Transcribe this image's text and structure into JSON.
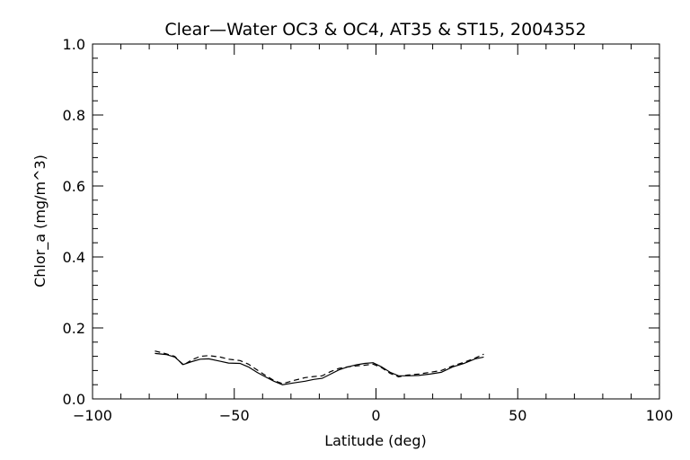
{
  "chart_data": {
    "type": "line",
    "title": "Clear—Water OC3 & OC4, AT35 & ST15, 2004352",
    "xlabel": "Latitude (deg)",
    "ylabel": "Chlor_a (mg/m^3)",
    "xlim": [
      -100,
      100
    ],
    "ylim": [
      0.0,
      1.0
    ],
    "xticks": [
      -100,
      -50,
      0,
      50,
      100
    ],
    "xtick_labels": [
      "−100",
      "−50",
      "0",
      "50",
      "100"
    ],
    "yticks": [
      0.0,
      0.2,
      0.4,
      0.6,
      0.8,
      1.0
    ],
    "ytick_labels": [
      "0.0",
      "0.2",
      "0.4",
      "0.6",
      "0.8",
      "1.0"
    ],
    "grid": false,
    "series": [
      {
        "style": "solid",
        "x": [
          -78,
          -74,
          -71,
          -68,
          -65,
          -62,
          -59,
          -55,
          -52,
          -48,
          -45,
          -42,
          -39,
          -36,
          -33,
          -29,
          -25,
          -22,
          -19,
          -16,
          -13,
          -10,
          -7,
          -4,
          -1,
          2,
          5,
          8,
          11,
          15,
          19,
          23,
          27,
          31,
          35,
          38
        ],
        "y": [
          0.128,
          0.125,
          0.118,
          0.097,
          0.105,
          0.112,
          0.113,
          0.106,
          0.101,
          0.1,
          0.09,
          0.075,
          0.062,
          0.05,
          0.04,
          0.045,
          0.05,
          0.055,
          0.058,
          0.07,
          0.082,
          0.09,
          0.096,
          0.1,
          0.102,
          0.09,
          0.075,
          0.065,
          0.065,
          0.066,
          0.07,
          0.075,
          0.09,
          0.1,
          0.113,
          0.118
        ]
      },
      {
        "style": "dashed",
        "x": [
          -78,
          -74,
          -71,
          -68,
          -65,
          -62,
          -59,
          -55,
          -52,
          -48,
          -45,
          -42,
          -39,
          -36,
          -33,
          -29,
          -25,
          -22,
          -19,
          -16,
          -13,
          -10,
          -7,
          -4,
          -1,
          2,
          5,
          8,
          11,
          15,
          19,
          23,
          27,
          31,
          35,
          38
        ],
        "y": [
          0.135,
          0.127,
          0.12,
          0.095,
          0.11,
          0.12,
          0.122,
          0.118,
          0.112,
          0.108,
          0.098,
          0.082,
          0.066,
          0.052,
          0.043,
          0.052,
          0.06,
          0.063,
          0.065,
          0.077,
          0.086,
          0.09,
          0.093,
          0.095,
          0.098,
          0.088,
          0.072,
          0.062,
          0.067,
          0.07,
          0.075,
          0.08,
          0.093,
          0.103,
          0.115,
          0.126
        ]
      }
    ]
  }
}
